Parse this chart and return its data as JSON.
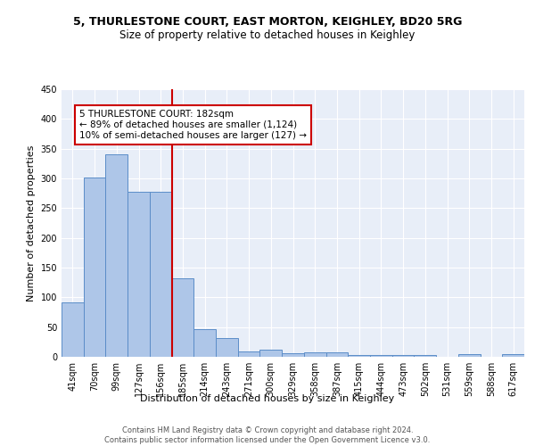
{
  "title1": "5, THURLESTONE COURT, EAST MORTON, KEIGHLEY, BD20 5RG",
  "title2": "Size of property relative to detached houses in Keighley",
  "xlabel": "Distribution of detached houses by size in Keighley",
  "ylabel": "Number of detached properties",
  "categories": [
    "41sqm",
    "70sqm",
    "99sqm",
    "127sqm",
    "156sqm",
    "185sqm",
    "214sqm",
    "243sqm",
    "271sqm",
    "300sqm",
    "329sqm",
    "358sqm",
    "387sqm",
    "415sqm",
    "444sqm",
    "473sqm",
    "502sqm",
    "531sqm",
    "559sqm",
    "588sqm",
    "617sqm"
  ],
  "values": [
    91,
    302,
    340,
    277,
    277,
    132,
    46,
    31,
    9,
    12,
    6,
    7,
    8,
    3,
    3,
    3,
    3,
    0,
    4,
    0,
    4
  ],
  "bar_color": "#aec6e8",
  "bar_edge_color": "#5b8dc8",
  "background_color": "#e8eef8",
  "grid_color": "#ffffff",
  "ref_line_color": "#cc0000",
  "ref_line_index": 5,
  "annotation_text": "5 THURLESTONE COURT: 182sqm\n← 89% of detached houses are smaller (1,124)\n10% of semi-detached houses are larger (127) →",
  "annotation_box_color": "#ffffff",
  "annotation_box_edge": "#cc0000",
  "footer": "Contains HM Land Registry data © Crown copyright and database right 2024.\nContains public sector information licensed under the Open Government Licence v3.0.",
  "ylim": [
    0,
    450
  ],
  "title1_fontsize": 9,
  "title2_fontsize": 8.5,
  "ylabel_fontsize": 8,
  "xlabel_fontsize": 8,
  "tick_fontsize": 7,
  "annotation_fontsize": 7.5,
  "footer_fontsize": 6
}
